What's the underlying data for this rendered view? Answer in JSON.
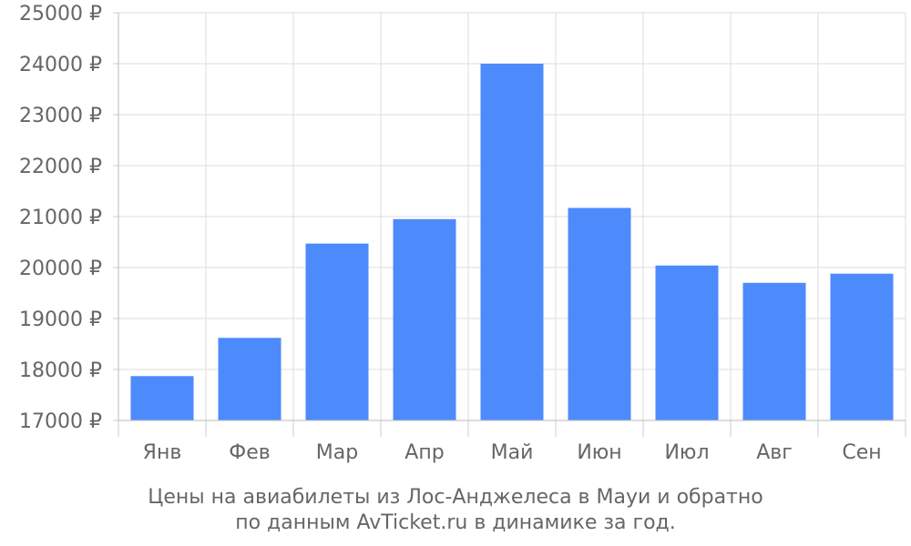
{
  "chart_data": {
    "type": "bar",
    "categories": [
      "Янв",
      "Фев",
      "Мар",
      "Апр",
      "Май",
      "Июн",
      "Июл",
      "Авг",
      "Сен"
    ],
    "values": [
      17870,
      18620,
      20470,
      20950,
      24000,
      21170,
      20040,
      19700,
      19880
    ],
    "yticks": [
      "17000 ₽",
      "18000 ₽",
      "19000 ₽",
      "20000 ₽",
      "21000 ₽",
      "22000 ₽",
      "23000 ₽",
      "24000 ₽",
      "25000 ₽"
    ],
    "ylim": [
      17000,
      25000
    ],
    "y_unit": "₽",
    "grid": true,
    "bar_color": "#4d8afc",
    "caption_line1": "Цены на авиабилеты из Лос-Анджелеса в Мауи и обратно",
    "caption_line2": "по данным AvTicket.ru в динамике за год."
  }
}
